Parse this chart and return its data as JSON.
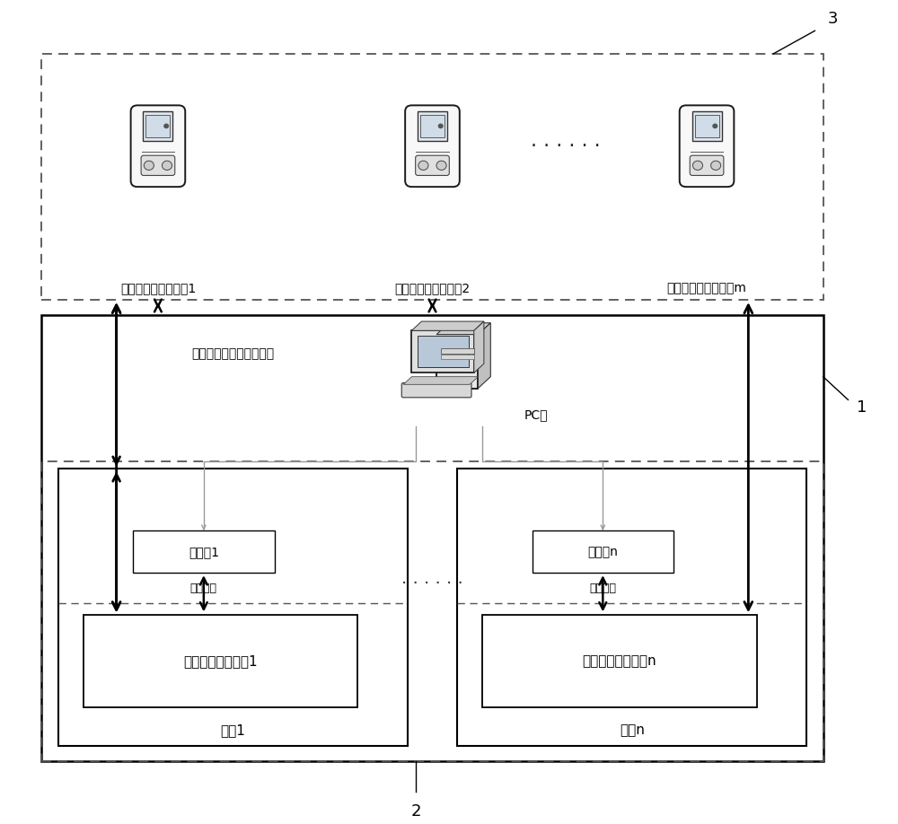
{
  "bg_color": "#ffffff",
  "fig_width": 10.0,
  "fig_height": 9.18,
  "device1_label": "移动式护士手持设备1",
  "device2_label": "移动式护士手持设备2",
  "devicem_label": "移动式护士手持设备m",
  "server_label": "医护人员工作中心服务器",
  "pc_label": "PC机",
  "reader1_label": "读写器1",
  "readern_label": "读写器n",
  "rf_signal1_label": "射频信号",
  "rf_signaln_label": "射频信号",
  "monitor1_label": "智能输液监护设备1",
  "monitorn_label": "智能输液监护设备n",
  "ward1_label": "病房1",
  "wardn_label": "病房n",
  "dots_h": "· · · · · ·",
  "dots_ward": "· · · · · ·",
  "label_1": "1",
  "label_2": "2",
  "label_3": "3",
  "font_size": 11,
  "font_size_sm": 10,
  "font_size_label": 13
}
